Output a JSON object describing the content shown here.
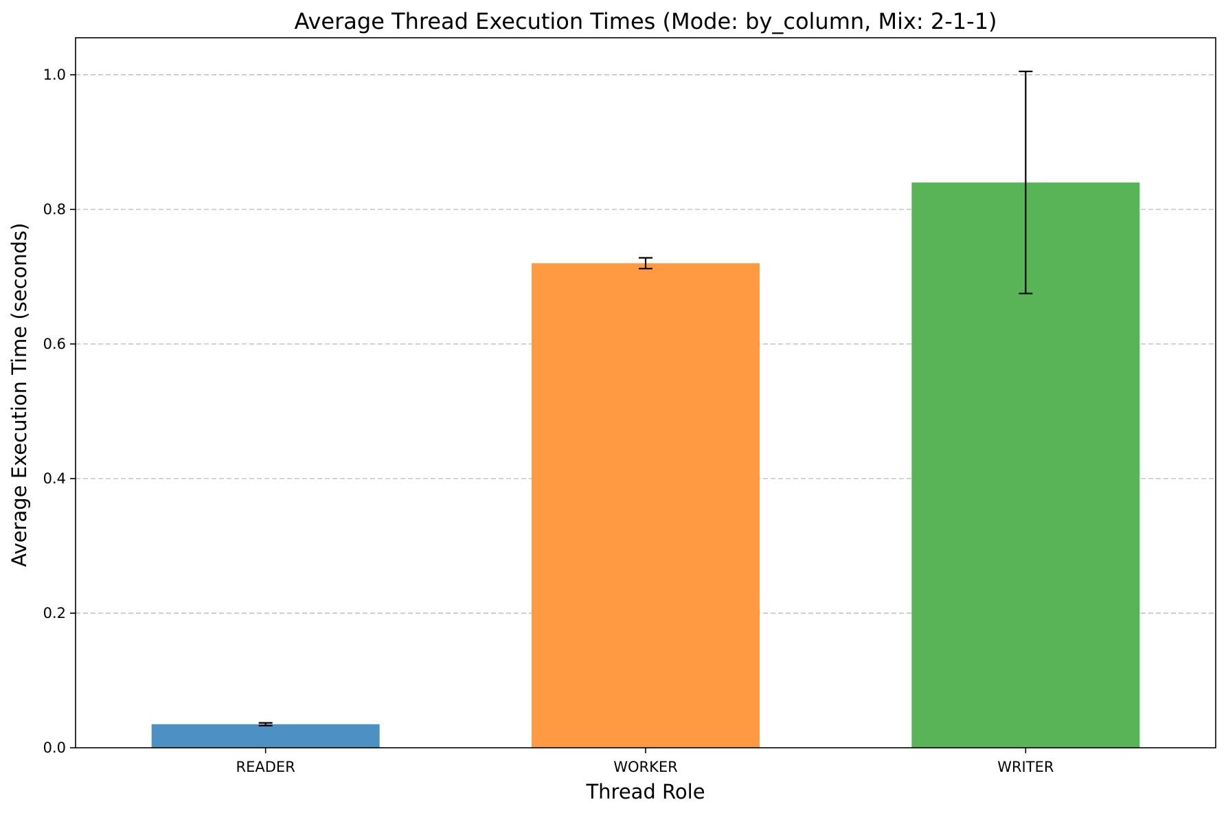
{
  "chart_data": {
    "type": "bar",
    "title": "Average Thread Execution Times (Mode: by_column, Mix: 2-1-1)",
    "xlabel": "Thread Role",
    "ylabel": "Average Execution Time (seconds)",
    "categories": [
      "READER",
      "WORKER",
      "WRITER"
    ],
    "values": [
      0.035,
      0.72,
      0.84
    ],
    "errors": [
      0.002,
      0.008,
      0.165
    ],
    "colors": [
      "#4c90c4",
      "#ff9a42",
      "#59b457"
    ],
    "ylim": [
      0.0,
      1.055
    ],
    "yticks": [
      0.0,
      0.2,
      0.4,
      0.6,
      0.8,
      1.0
    ],
    "ytick_labels": [
      "0.0",
      "0.2",
      "0.4",
      "0.6",
      "0.8",
      "1.0"
    ],
    "grid": "y-dashed",
    "legend": "none"
  }
}
